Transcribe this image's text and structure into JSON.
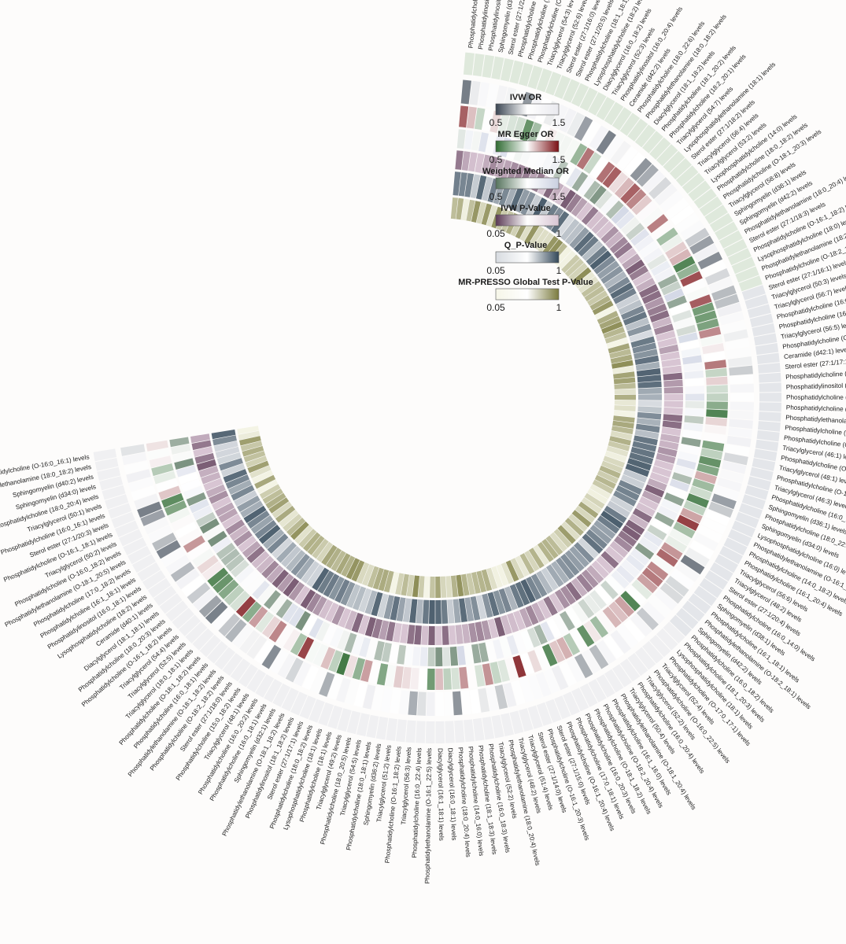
{
  "chart_data": {
    "type": "heatmap",
    "layout": "circular",
    "rings": [
      "IVW OR",
      "MR Egger OR",
      "Weighted Median OR",
      "IVW P-Value",
      "Q_P-Value",
      "MR-PRESSO Global Test P-Value"
    ],
    "legend": [
      {
        "title": "IVW OR",
        "min_label": "0.5",
        "max_label": "1.5",
        "colors": [
          "#3b4653",
          "#ffffff",
          "#e9e9ee"
        ]
      },
      {
        "title": "MR Egger OR",
        "min_label": "0.5",
        "max_label": "1.5",
        "colors": [
          "#2f6b32",
          "#ffffff",
          "#7a0f14"
        ]
      },
      {
        "title": "Weighted Median OR",
        "min_label": "0.5",
        "max_label": "1.5",
        "colors": [
          "#56745d",
          "#ffffff",
          "#c9cfe0"
        ]
      },
      {
        "title": "IVW P-Value",
        "min_label": "0.05",
        "max_label": "1",
        "colors": [
          "#5b3a55",
          "#ffffff",
          "#d8c5d3"
        ]
      },
      {
        "title": "Q_P-Value",
        "min_label": "0.05",
        "max_label": "1",
        "colors": [
          "#d7dbe0",
          "#ffffff",
          "#34495a"
        ]
      },
      {
        "title": "MR-PRESSO Global Test P-Value",
        "min_label": "0.05",
        "max_label": "1",
        "colors": [
          "#f6f6e8",
          "#ffffff",
          "#7b7b3e"
        ]
      }
    ],
    "ring_colors": {
      "ivw_low": "#3b4653",
      "ivw_high": "#e9e9ee",
      "egger_low": "#2f6b32",
      "egger_high": "#7a0f14",
      "wm_low": "#56745d",
      "wm_high": "#c9cfe0",
      "p_low": "#5b3a55",
      "p_high": "#d8c5d3",
      "q_low": "#d7dbe0",
      "q_high": "#34495a",
      "presso_low": "#f6f6e8",
      "presso_high": "#7b7b3e"
    },
    "categories": [
      "Phosphatidylcholine (18:2_20:3) levels",
      "Phosphatidylinositol (18:1_20:4) levels",
      "Phosphatidylinositol (18:1_18:2) levels",
      "Sphingomyelin (d34:1) levels",
      "Sterol ester (27:1/22:6) levels",
      "Phosphatidylcholine (18:0_18:3) levels",
      "Phosphatidylcholine (16:0_22:6) levels",
      "Phosphatidylcholine (O-16:0_18:2) levels",
      "Triacylglycerol (54:3) levels",
      "Triacylglycerol (52:6) levels",
      "Sterol ester (27:1/16:0) levels",
      "Sterol ester (27:1/20:5) levels",
      "Phosphatidylcholine (18:1_18:1) levels",
      "Lysophosphatidylcholine (18:2) levels",
      "Diacylglycerol (16:0_18:2) levels",
      "Triacylglycerol (52:3) levels",
      "Phosphatidylinositol (16:0_20:4) levels",
      "Ceramide (d42:2) levels",
      "Phosphatidylcholine (18:0_22:6) levels",
      "Phosphatidylethanolamine (18:0_18:2) levels",
      "Diacylglycerol (18:1_18:2) levels",
      "Phosphatidylcholine (18:1_20:2) levels",
      "Phosphatidylcholine (18:2_20:1) levels",
      "Triacylglycerol (54:7) levels",
      "Lysophosphatidylethanolamine (18:1) levels",
      "Sterol ester (27:1/18:2) levels",
      "Triacylglycerol (56:4) levels",
      "Triacylglycerol (53:2) levels",
      "Lysophosphatidylcholine (14:0) levels",
      "Phosphatidylcholine (18:0_18:2) levels",
      "Phosphatidylcholine (O-18:1_20:3) levels",
      "Triacylglycerol (58:8) levels",
      "Sphingomyelin (d38:1) levels",
      "Sphingomyelin (d42:2) levels",
      "Phosphatidylethanolamine (18:0_20:4) levels",
      "Sterol ester (27:1/18:3) levels",
      "Phosphatidylcholine (O-16:1_18:2) levels",
      "Lysophosphatidylcholine (18:0) levels",
      "Phosphatidylethanolamine (18:2) levels",
      "Phosphatidylcholine (O-18:2_18:1) levels",
      "Sterol ester (27:1/16:1) levels",
      "Triacylglycerol (50:3) levels",
      "Triacylglycerol (56:7) levels",
      "Phosphatidylcholine (16:0_20:2) levels",
      "Phosphatidylcholine (16:1_18:0) levels",
      "Triacylglycerol (56:5) levels",
      "Phosphatidylcholine (O-17:0_15:0) levels",
      "Ceramide (d42:1) levels",
      "Sterol ester (27:1/17:1) levels",
      "Phosphatidylcholine (18:1_18:2) levels",
      "Phosphatidylinositol (18:1_18:1) levels",
      "Phosphatidylcholine (O-16:1_16:0) levels",
      "Phosphatidylcholine (O-18:2_20:4) levels",
      "Phosphatidylethanolamine (O-18:1_18:1) levels",
      "Phosphatidylcholine (O-18:1_20:4) levels",
      "Phosphatidylcholine (O-16:0_20:4) levels",
      "Triacylglycerol (46:1) levels",
      "Phosphatidylcholine (O-18:1_18:0) levels",
      "Triacylglycerol (48:1) levels",
      "Phosphatidylcholine (O-18:1_18:1) levels",
      "Triacylglycerol (46:3) levels",
      "Phosphatidylcholine (16:0_18:1) levels",
      "Sphingomyelin (d36:1) levels",
      "Phosphatidylcholine (18:0_22:5) levels",
      "Sphingomyelin (d34:0) levels",
      "Lysophosphatidylcholine (16:0) levels",
      "Phosphatidylethanolamine (O-16:1_20:4) levels",
      "Phosphatidylcholine (14:0_18:2) levels",
      "Phosphatidylcholine (16:1_20:4) levels",
      "Triacylglycerol (56:6) levels",
      "Triacylglycerol (48:2) levels",
      "Sterol ester (27:1/20:4) levels",
      "Phosphatidylcholine (16:0_14:0) levels",
      "Sphingomyelin (d38:1) levels",
      "Phosphatidylcholine (16:1_18:1) levels",
      "Phosphatidylethanolamine (O-18:2_18:1) levels",
      "Sphingomyelin (d42:2) levels",
      "Phosphatidylcholine (16:0_18:2) levels",
      "Phosphatidylcholine (18:1_20:3) levels",
      "Lysophosphatidylcholine (18:1) levels",
      "Phosphatidylcholine (O-17:0_17:1) levels",
      "Triacylglycerol (52:4) levels",
      "Phosphatidylcholine (O-16:0_22:5) levels",
      "Triacylglycerol (52:2) levels",
      "Phosphatidylcholine (16:0_20:4) levels",
      "Triacylglycerol (50:4) levels",
      "Phosphatidylethanolamine (O-18:1_20:4) levels",
      "Phosphatidylcholine (16:1_16:0) levels",
      "Phosphatidylcholine (O-18:2_20:4) levels",
      "Phosphatidylcholine (O-18:1_18:2) levels",
      "Phosphatidylcholine (16:0_20:3) levels",
      "Phosphatidylcholine (17:0_18:1) levels",
      "Phosphatidylcholine (O-16:1_20:4) levels",
      "Sterol ester (27:1/15:0) levels",
      "Phosphatidylcholine (O-16:1_20:3) levels",
      "Sterol ester (27:1/14:0) levels",
      "Triacylglycerol (51:4) levels",
      "Triacylglycerol (48:2) levels",
      "Phosphatidylethanolamine (18:0_20:4) levels",
      "Triacylglycerol (52:2) levels",
      "Phosphatidylcholine (16:0_18:3) levels",
      "Phosphatidylcholine (18:1_18:3) levels",
      "Phosphatidylcholine (14:0_16:0) levels",
      "Phosphatidylcholine (18:0_20:4) levels",
      "Diacylglycerol (16:0_18:1) levels",
      "Diacylglycerol (16:1_18:1) levels",
      "Phosphatidylethanolamine (O-16:1_22:5) levels",
      "Phosphatidylcholine (16:0_22:4) levels",
      "Triacylglycerol (56:3) levels",
      "Phosphatidylcholine (O-16:1_18:2) levels",
      "Triacylglycerol (51:2) levels",
      "Sphingomyelin (d36:2) levels",
      "Phosphatidylcholine (18:0_18:1) levels",
      "Triacylglycerol (54:5) levels",
      "Phosphatidylcholine (18:0_20:5) levels",
      "Triacylglycerol (49:2) levels",
      "Phosphatidylcholine (18:1) levels",
      "Lysophosphatidylcholine (18:1) levels",
      "Phosphatidylcholine (18:0_18:2) levels",
      "Sterol ester (27:1/17:1) levels",
      "Phosphatidylinositol (18:1_18:2) levels",
      "Phosphatidylethanolamine (O-18:1_18:2) levels",
      "Sphingomyelin (d32:1) levels",
      "Phosphatidylcholine (16:0_18:1) levels",
      "Phosphatidylcholine (16:0_20:2) levels",
      "Triacylglycerol (48:1) levels",
      "Phosphatidylcholine (15:0_18:2) levels",
      "Sterol ester (27:1/18:0) levels",
      "Phosphatidylcholine (O-18:2_18:2) levels",
      "Phosphatidylethanolamine (O-18:1_18:2) levels",
      "Phosphatidylcholine (16:0_18:1) levels",
      "Phosphatidylcholine (O-18:1_18:2) levels",
      "Triacylglycerol (18:0_18:1) levels",
      "Triacylglycerol (52:5) levels",
      "Triacylglycerol (54:4) levels",
      "Phosphatidylcholine (O-16:1_18:2) levels",
      "Phosphatidylcholine (18:0_20:3) levels",
      "Diacylglycerol (18:1_18:1) levels",
      "Ceramide (d40:1) levels",
      "Lysophosphatidylcholine (18:2) levels",
      "Phosphatidylinositol (16:0_18:1) levels",
      "Phosphatidylcholine (16:1_18:1) levels",
      "Phosphatidylcholine (17:0_18:2) levels",
      "Phosphatidylethanolamine (O-18:1_20:5) levels",
      "Phosphatidylcholine (O-16:0_18:2) levels",
      "Triacylglycerol (50:2) levels",
      "Phosphatidylcholine (O-16:1_18:1) levels",
      "Sterol ester (27:1/20:3) levels",
      "Phosphatidylcholine (16:0_16:1) levels",
      "Triacylglycerol (50:1) levels",
      "Phosphatidylcholine (18:0_20:4) levels",
      "Sphingomyelin (d34:0) levels",
      "Sphingomyelin (d40:2) levels",
      "Phosphatidylethanolamine (18:0_18:2) levels",
      "Phosphatidylcholine (O-16:0_16:1) levels"
    ]
  }
}
